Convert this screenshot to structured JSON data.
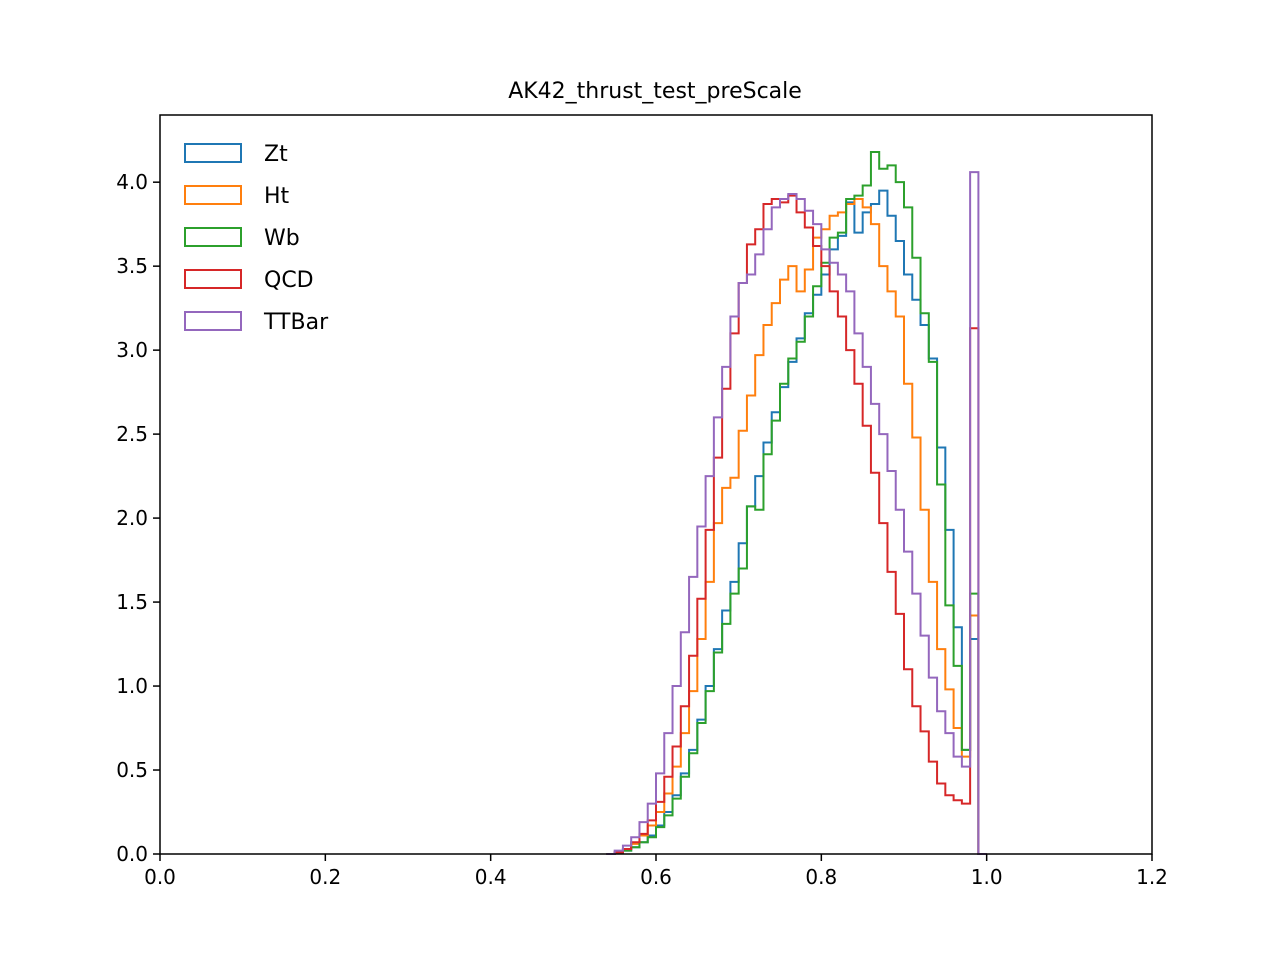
{
  "chart_data": {
    "type": "histogram-step",
    "title": "AK42_thrust_test_preScale",
    "xlabel": "",
    "ylabel": "",
    "xlim": [
      0.0,
      1.2
    ],
    "ylim": [
      0.0,
      4.4
    ],
    "xticks": [
      "0.0",
      "0.2",
      "0.4",
      "0.6",
      "0.8",
      "1.0",
      "1.2"
    ],
    "yticks": [
      "0.0",
      "0.5",
      "1.0",
      "1.5",
      "2.0",
      "2.5",
      "3.0",
      "3.5",
      "4.0"
    ],
    "grid": false,
    "legend_position": "top-left",
    "bin_edges_start": 0.54,
    "bin_width": 0.01,
    "series": [
      {
        "name": "Zt",
        "color": "#1f77b4",
        "values": [
          0.0,
          0.01,
          0.02,
          0.04,
          0.07,
          0.11,
          0.17,
          0.25,
          0.35,
          0.48,
          0.62,
          0.8,
          1.0,
          1.22,
          1.45,
          1.62,
          1.85,
          2.07,
          2.25,
          2.45,
          2.63,
          2.78,
          2.93,
          3.07,
          3.22,
          3.33,
          3.45,
          3.6,
          3.68,
          3.88,
          3.7,
          3.82,
          3.87,
          3.95,
          3.8,
          3.65,
          3.45,
          3.3,
          3.15,
          2.95,
          2.42,
          1.93,
          1.35,
          0.62,
          1.28,
          0.0
        ]
      },
      {
        "name": "Ht",
        "color": "#ff7f0e",
        "values": [
          0.0,
          0.01,
          0.03,
          0.06,
          0.11,
          0.17,
          0.25,
          0.36,
          0.52,
          0.72,
          0.97,
          1.28,
          1.62,
          1.97,
          2.18,
          2.24,
          2.52,
          2.73,
          2.97,
          3.15,
          3.28,
          3.42,
          3.5,
          3.35,
          3.48,
          3.67,
          3.72,
          3.8,
          3.82,
          3.87,
          3.9,
          3.85,
          3.75,
          3.5,
          3.35,
          3.2,
          2.8,
          2.48,
          2.05,
          1.62,
          1.22,
          0.98,
          0.75,
          0.58,
          1.42,
          0.0
        ]
      },
      {
        "name": "Wb",
        "color": "#2ca02c",
        "values": [
          0.0,
          0.01,
          0.02,
          0.04,
          0.07,
          0.1,
          0.16,
          0.23,
          0.33,
          0.46,
          0.6,
          0.78,
          0.97,
          1.2,
          1.37,
          1.55,
          1.7,
          2.07,
          2.05,
          2.38,
          2.58,
          2.8,
          2.95,
          3.05,
          3.2,
          3.38,
          3.52,
          3.67,
          3.7,
          3.9,
          3.92,
          3.98,
          4.18,
          4.08,
          4.1,
          4.0,
          3.85,
          3.55,
          3.22,
          2.93,
          2.2,
          1.48,
          1.12,
          0.62,
          1.55,
          0.0
        ]
      },
      {
        "name": "QCD",
        "color": "#d62728",
        "values": [
          0.0,
          0.01,
          0.03,
          0.07,
          0.12,
          0.2,
          0.31,
          0.46,
          0.64,
          0.88,
          1.18,
          1.52,
          1.93,
          2.36,
          2.77,
          3.1,
          3.4,
          3.63,
          3.72,
          3.87,
          3.9,
          3.88,
          3.92,
          3.82,
          3.73,
          3.62,
          3.5,
          3.35,
          3.2,
          3.0,
          2.8,
          2.55,
          2.27,
          1.97,
          1.68,
          1.43,
          1.1,
          0.88,
          0.73,
          0.55,
          0.42,
          0.35,
          0.32,
          0.3,
          3.13,
          0.0
        ]
      },
      {
        "name": "TTBar",
        "color": "#9467bd",
        "values": [
          0.0,
          0.02,
          0.05,
          0.1,
          0.19,
          0.3,
          0.48,
          0.72,
          1.0,
          1.32,
          1.65,
          1.95,
          2.25,
          2.6,
          2.9,
          3.2,
          3.4,
          3.45,
          3.57,
          3.72,
          3.85,
          3.9,
          3.93,
          3.9,
          3.83,
          3.75,
          3.6,
          3.52,
          3.45,
          3.35,
          3.1,
          2.9,
          2.68,
          2.5,
          2.28,
          2.05,
          1.8,
          1.55,
          1.3,
          1.05,
          0.85,
          0.72,
          0.58,
          0.52,
          4.06,
          0.0
        ]
      }
    ]
  }
}
